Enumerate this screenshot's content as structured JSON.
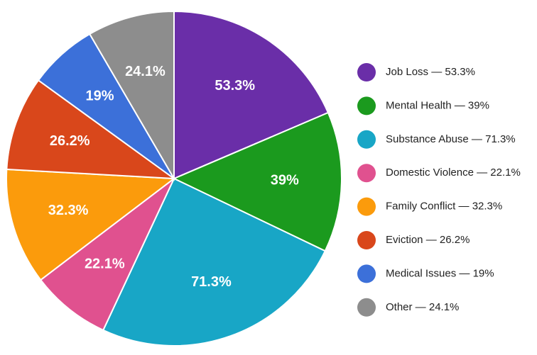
{
  "chart_data": {
    "type": "pie",
    "categories": [
      "Job Loss",
      "Mental Health",
      "Substance Abuse",
      "Domestic Violence",
      "Family Conflict",
      "Eviction",
      "Medical Issues",
      "Other"
    ],
    "values": [
      53.3,
      39,
      71.3,
      22.1,
      32.3,
      26.2,
      19,
      24.1
    ],
    "value_labels": [
      "53.3%",
      "39%",
      "71.3%",
      "22.1%",
      "32.3%",
      "26.2%",
      "19%",
      "24.1%"
    ],
    "colors": [
      "#6a2ea8",
      "#1b9a1e",
      "#18a6c6",
      "#e0518f",
      "#fb9b0c",
      "#d9471b",
      "#3c70d9",
      "#8d8d8d"
    ],
    "legend": "right"
  }
}
